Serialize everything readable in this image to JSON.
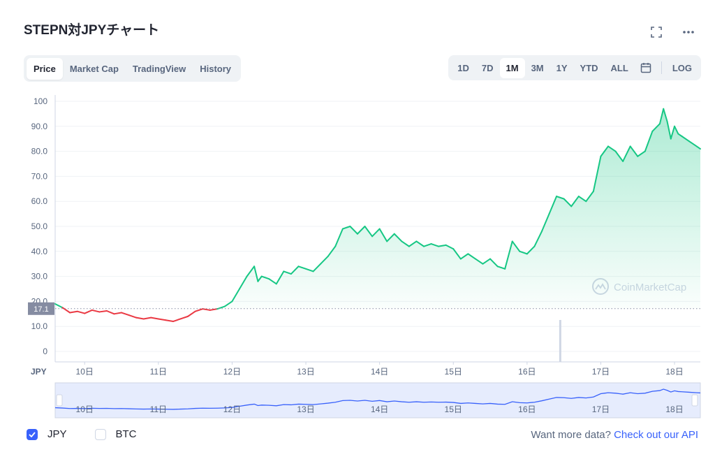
{
  "header": {
    "title": "STEPN対JPYチャート"
  },
  "icons": {
    "fullscreen": "fullscreen-icon",
    "more": "more-icon",
    "calendar": "calendar-icon",
    "watermark": "coinmarketcap-logo-icon"
  },
  "tabs": [
    {
      "label": "Price",
      "active": true
    },
    {
      "label": "Market Cap",
      "active": false
    },
    {
      "label": "TradingView",
      "active": false
    },
    {
      "label": "History",
      "active": false
    }
  ],
  "ranges": [
    {
      "label": "1D",
      "active": false
    },
    {
      "label": "7D",
      "active": false
    },
    {
      "label": "1M",
      "active": true
    },
    {
      "label": "3M",
      "active": false
    },
    {
      "label": "1Y",
      "active": false
    },
    {
      "label": "YTD",
      "active": false
    },
    {
      "label": "ALL",
      "active": false
    }
  ],
  "log_label": "LOG",
  "legend": {
    "jpy": "JPY",
    "btc": "BTC"
  },
  "api": {
    "prefix": "Want more data?",
    "link": "Check out our API"
  },
  "colors": {
    "up": "#16c784",
    "down": "#ea3943",
    "accent": "#3861fb",
    "navigator": "#3861fb"
  },
  "chart_data": {
    "type": "line",
    "currency_label": "JPY",
    "watermark": "CoinMarketCap",
    "ylim": [
      0,
      100
    ],
    "yticks": [
      "0",
      "10.0",
      "20.0",
      "30.0",
      "40.0",
      "50.0",
      "60.0",
      "70.0",
      "80.0",
      "90.0",
      "100"
    ],
    "xticks": [
      "10日",
      "11日",
      "12日",
      "13日",
      "14日",
      "15日",
      "16日",
      "17日",
      "18日"
    ],
    "xlim_days": [
      9.6,
      18.35
    ],
    "baseline": 17.1,
    "baseline_label": "17.1",
    "grid": true,
    "series": [
      {
        "x": [
          9.6,
          9.7,
          9.8,
          9.9,
          10.0,
          10.1,
          10.2,
          10.3,
          10.4,
          10.5,
          10.6,
          10.7,
          10.8,
          10.9,
          11.0,
          11.1,
          11.2,
          11.3,
          11.4,
          11.5,
          11.6,
          11.7,
          11.8,
          11.9,
          12.0,
          12.1,
          12.2,
          12.3,
          12.35,
          12.4,
          12.5,
          12.6,
          12.7,
          12.8,
          12.9,
          13.0,
          13.1,
          13.2,
          13.3,
          13.4,
          13.5,
          13.6,
          13.7,
          13.8,
          13.9,
          14.0,
          14.1,
          14.2,
          14.3,
          14.4,
          14.5,
          14.6,
          14.7,
          14.8,
          14.9,
          15.0,
          15.1,
          15.2,
          15.3,
          15.4,
          15.5,
          15.6,
          15.7,
          15.8,
          15.9,
          16.0,
          16.1,
          16.2,
          16.3,
          16.4,
          16.5,
          16.6,
          16.7,
          16.8,
          16.9,
          17.0,
          17.05,
          17.1,
          17.2,
          17.3,
          17.4,
          17.5,
          17.6,
          17.7,
          17.8,
          17.85,
          17.9,
          17.95,
          18.0,
          18.05,
          18.1,
          18.2,
          18.3,
          18.35
        ],
        "values": [
          19.0,
          17.5,
          15.5,
          16.0,
          15.2,
          16.5,
          15.8,
          16.2,
          15.0,
          15.5,
          14.5,
          13.5,
          13.0,
          13.5,
          13.0,
          12.5,
          12.0,
          13.0,
          14.0,
          16.0,
          17.0,
          16.5,
          17.0,
          18.0,
          20.0,
          25.0,
          30.0,
          34.0,
          28.0,
          30.0,
          29.0,
          27.0,
          32.0,
          31.0,
          34.0,
          33.0,
          32.0,
          35.0,
          38.0,
          42.0,
          49.0,
          50.0,
          47.0,
          50.0,
          46.0,
          49.0,
          44.0,
          47.0,
          44.0,
          42.0,
          44.0,
          42.0,
          43.0,
          42.0,
          42.5,
          41.0,
          37.0,
          39.0,
          37.0,
          35.0,
          37.0,
          34.0,
          33.0,
          44.0,
          40.0,
          39.0,
          42.0,
          48.0,
          55.0,
          62.0,
          61.0,
          58.0,
          62.0,
          60.0,
          64.0,
          78.0,
          80.0,
          82.0,
          80.0,
          76.0,
          82.0,
          78.0,
          80.0,
          88.0,
          91.0,
          97.0,
          92.0,
          85.0,
          90.0,
          87.0,
          86.0,
          84.0,
          82.0,
          81.0
        ]
      }
    ],
    "volume": [
      {
        "x": 16.45,
        "value": 15
      }
    ]
  }
}
